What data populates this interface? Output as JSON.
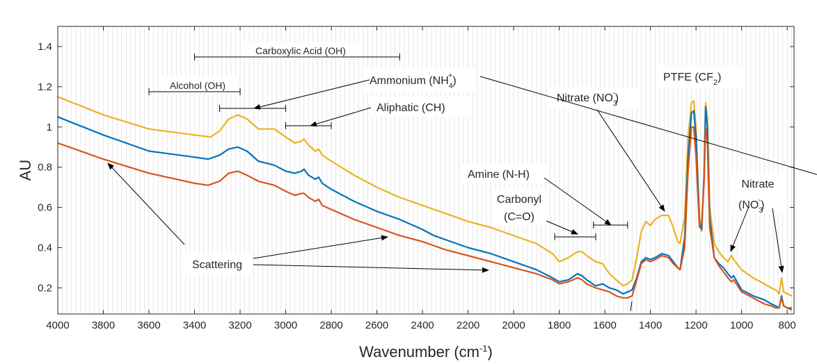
{
  "chart_data": {
    "type": "line",
    "title": "",
    "xlabel": {
      "text": "Wavenumber (cm",
      "sup": "-1",
      "close": ")"
    },
    "ylabel": "AU",
    "xlim": [
      4000,
      770
    ],
    "ylim": [
      0.07,
      1.5
    ],
    "x_reversed": true,
    "grid": "vertical-minor",
    "x_ticks": [
      4000,
      3800,
      3600,
      3400,
      3200,
      3000,
      2800,
      2600,
      2400,
      2200,
      2000,
      1800,
      1600,
      1400,
      1200,
      1000,
      800
    ],
    "y_ticks": [
      0.2,
      0.4,
      0.6,
      0.8,
      1,
      1.2,
      1.4
    ],
    "series": [
      {
        "name": "yellow spectrum",
        "color": "#EDB120",
        "points": [
          [
            4000,
            1.15
          ],
          [
            3800,
            1.06
          ],
          [
            3600,
            0.99
          ],
          [
            3400,
            0.96
          ],
          [
            3330,
            0.95
          ],
          [
            3290,
            0.98
          ],
          [
            3250,
            1.04
          ],
          [
            3210,
            1.06
          ],
          [
            3170,
            1.04
          ],
          [
            3120,
            0.99
          ],
          [
            3050,
            0.99
          ],
          [
            3000,
            0.95
          ],
          [
            2960,
            0.92
          ],
          [
            2930,
            0.93
          ],
          [
            2920,
            0.94
          ],
          [
            2900,
            0.91
          ],
          [
            2870,
            0.88
          ],
          [
            2855,
            0.89
          ],
          [
            2840,
            0.86
          ],
          [
            2800,
            0.83
          ],
          [
            2700,
            0.76
          ],
          [
            2600,
            0.7
          ],
          [
            2500,
            0.65
          ],
          [
            2400,
            0.61
          ],
          [
            2350,
            0.59
          ],
          [
            2300,
            0.57
          ],
          [
            2200,
            0.53
          ],
          [
            2100,
            0.5
          ],
          [
            2000,
            0.46
          ],
          [
            1900,
            0.42
          ],
          [
            1830,
            0.37
          ],
          [
            1800,
            0.33
          ],
          [
            1760,
            0.35
          ],
          [
            1720,
            0.38
          ],
          [
            1700,
            0.38
          ],
          [
            1680,
            0.36
          ],
          [
            1640,
            0.33
          ],
          [
            1610,
            0.32
          ],
          [
            1580,
            0.27
          ],
          [
            1550,
            0.24
          ],
          [
            1520,
            0.21
          ],
          [
            1500,
            0.22
          ],
          [
            1480,
            0.24
          ],
          [
            1460,
            0.35
          ],
          [
            1440,
            0.48
          ],
          [
            1420,
            0.53
          ],
          [
            1400,
            0.51
          ],
          [
            1380,
            0.54
          ],
          [
            1350,
            0.56
          ],
          [
            1320,
            0.56
          ],
          [
            1300,
            0.5
          ],
          [
            1280,
            0.43
          ],
          [
            1270,
            0.42
          ],
          [
            1250,
            0.55
          ],
          [
            1235,
            0.95
          ],
          [
            1220,
            1.12
          ],
          [
            1210,
            1.13
          ],
          [
            1200,
            1.0
          ],
          [
            1185,
            0.55
          ],
          [
            1175,
            0.48
          ],
          [
            1165,
            0.75
          ],
          [
            1158,
            1.12
          ],
          [
            1150,
            1.05
          ],
          [
            1140,
            0.6
          ],
          [
            1120,
            0.42
          ],
          [
            1100,
            0.38
          ],
          [
            1080,
            0.35
          ],
          [
            1060,
            0.33
          ],
          [
            1045,
            0.36
          ],
          [
            1035,
            0.34
          ],
          [
            1000,
            0.29
          ],
          [
            950,
            0.25
          ],
          [
            900,
            0.22
          ],
          [
            870,
            0.2
          ],
          [
            850,
            0.19
          ],
          [
            835,
            0.17
          ],
          [
            825,
            0.25
          ],
          [
            815,
            0.18
          ],
          [
            800,
            0.17
          ],
          [
            780,
            0.16
          ]
        ]
      },
      {
        "name": "blue spectrum",
        "color": "#0072BD",
        "points": [
          [
            4000,
            1.05
          ],
          [
            3800,
            0.96
          ],
          [
            3600,
            0.88
          ],
          [
            3400,
            0.85
          ],
          [
            3340,
            0.84
          ],
          [
            3290,
            0.86
          ],
          [
            3250,
            0.89
          ],
          [
            3210,
            0.9
          ],
          [
            3170,
            0.88
          ],
          [
            3120,
            0.83
          ],
          [
            3050,
            0.81
          ],
          [
            3000,
            0.78
          ],
          [
            2960,
            0.77
          ],
          [
            2930,
            0.78
          ],
          [
            2920,
            0.79
          ],
          [
            2900,
            0.76
          ],
          [
            2870,
            0.74
          ],
          [
            2855,
            0.75
          ],
          [
            2840,
            0.72
          ],
          [
            2800,
            0.69
          ],
          [
            2700,
            0.63
          ],
          [
            2600,
            0.58
          ],
          [
            2500,
            0.54
          ],
          [
            2400,
            0.49
          ],
          [
            2350,
            0.46
          ],
          [
            2300,
            0.44
          ],
          [
            2200,
            0.4
          ],
          [
            2100,
            0.37
          ],
          [
            2000,
            0.33
          ],
          [
            1900,
            0.29
          ],
          [
            1830,
            0.25
          ],
          [
            1800,
            0.23
          ],
          [
            1760,
            0.24
          ],
          [
            1720,
            0.27
          ],
          [
            1700,
            0.26
          ],
          [
            1680,
            0.24
          ],
          [
            1640,
            0.21
          ],
          [
            1610,
            0.22
          ],
          [
            1580,
            0.2
          ],
          [
            1550,
            0.19
          ],
          [
            1520,
            0.17
          ],
          [
            1500,
            0.18
          ],
          [
            1480,
            0.19
          ],
          [
            1460,
            0.25
          ],
          [
            1440,
            0.33
          ],
          [
            1420,
            0.35
          ],
          [
            1400,
            0.34
          ],
          [
            1380,
            0.35
          ],
          [
            1350,
            0.37
          ],
          [
            1320,
            0.36
          ],
          [
            1300,
            0.33
          ],
          [
            1280,
            0.3
          ],
          [
            1270,
            0.29
          ],
          [
            1250,
            0.45
          ],
          [
            1235,
            0.85
          ],
          [
            1220,
            1.07
          ],
          [
            1210,
            1.08
          ],
          [
            1200,
            0.95
          ],
          [
            1185,
            0.52
          ],
          [
            1175,
            0.49
          ],
          [
            1165,
            0.75
          ],
          [
            1158,
            1.1
          ],
          [
            1150,
            1.0
          ],
          [
            1140,
            0.55
          ],
          [
            1120,
            0.35
          ],
          [
            1100,
            0.32
          ],
          [
            1080,
            0.3
          ],
          [
            1060,
            0.27
          ],
          [
            1045,
            0.25
          ],
          [
            1035,
            0.26
          ],
          [
            1000,
            0.19
          ],
          [
            950,
            0.16
          ],
          [
            900,
            0.14
          ],
          [
            870,
            0.12
          ],
          [
            850,
            0.11
          ],
          [
            835,
            0.1
          ],
          [
            825,
            0.16
          ],
          [
            815,
            0.11
          ],
          [
            800,
            0.1
          ],
          [
            780,
            0.1
          ]
        ]
      },
      {
        "name": "red spectrum",
        "color": "#D95319",
        "points": [
          [
            4000,
            0.92
          ],
          [
            3800,
            0.84
          ],
          [
            3600,
            0.77
          ],
          [
            3400,
            0.72
          ],
          [
            3340,
            0.71
          ],
          [
            3290,
            0.73
          ],
          [
            3250,
            0.77
          ],
          [
            3210,
            0.78
          ],
          [
            3170,
            0.76
          ],
          [
            3120,
            0.73
          ],
          [
            3050,
            0.71
          ],
          [
            3000,
            0.68
          ],
          [
            2960,
            0.66
          ],
          [
            2930,
            0.67
          ],
          [
            2920,
            0.67
          ],
          [
            2900,
            0.65
          ],
          [
            2870,
            0.63
          ],
          [
            2855,
            0.64
          ],
          [
            2840,
            0.61
          ],
          [
            2800,
            0.59
          ],
          [
            2700,
            0.54
          ],
          [
            2600,
            0.5
          ],
          [
            2500,
            0.46
          ],
          [
            2400,
            0.43
          ],
          [
            2350,
            0.41
          ],
          [
            2300,
            0.39
          ],
          [
            2200,
            0.36
          ],
          [
            2100,
            0.33
          ],
          [
            2000,
            0.3
          ],
          [
            1900,
            0.27
          ],
          [
            1830,
            0.24
          ],
          [
            1800,
            0.22
          ],
          [
            1760,
            0.23
          ],
          [
            1720,
            0.25
          ],
          [
            1700,
            0.24
          ],
          [
            1680,
            0.22
          ],
          [
            1640,
            0.2
          ],
          [
            1610,
            0.19
          ],
          [
            1580,
            0.18
          ],
          [
            1550,
            0.16
          ],
          [
            1520,
            0.15
          ],
          [
            1500,
            0.15
          ],
          [
            1480,
            0.16
          ],
          [
            1460,
            0.24
          ],
          [
            1440,
            0.32
          ],
          [
            1420,
            0.34
          ],
          [
            1400,
            0.33
          ],
          [
            1380,
            0.34
          ],
          [
            1350,
            0.36
          ],
          [
            1320,
            0.35
          ],
          [
            1300,
            0.32
          ],
          [
            1280,
            0.3
          ],
          [
            1270,
            0.29
          ],
          [
            1250,
            0.4
          ],
          [
            1235,
            0.78
          ],
          [
            1220,
            1.0
          ],
          [
            1210,
            1.0
          ],
          [
            1200,
            0.85
          ],
          [
            1185,
            0.5
          ],
          [
            1175,
            0.52
          ],
          [
            1165,
            0.72
          ],
          [
            1158,
            1.0
          ],
          [
            1150,
            0.92
          ],
          [
            1140,
            0.5
          ],
          [
            1120,
            0.35
          ],
          [
            1100,
            0.31
          ],
          [
            1080,
            0.28
          ],
          [
            1060,
            0.25
          ],
          [
            1045,
            0.23
          ],
          [
            1035,
            0.24
          ],
          [
            1000,
            0.18
          ],
          [
            950,
            0.15
          ],
          [
            900,
            0.12
          ],
          [
            870,
            0.11
          ],
          [
            850,
            0.1
          ],
          [
            835,
            0.1
          ],
          [
            825,
            0.15
          ],
          [
            815,
            0.11
          ],
          [
            800,
            0.1
          ],
          [
            780,
            0.09
          ]
        ]
      }
    ],
    "annotations": {
      "carboxylic": {
        "text": "Carboxylic Acid (OH)",
        "range": [
          3400,
          2500
        ]
      },
      "alcohol": {
        "text": "Alcohol (OH)",
        "range": [
          3600,
          3200
        ]
      },
      "ammonium": {
        "text": "Ammonium (NH",
        "sub": "4",
        "sup": "+",
        "close": ")",
        "range": [
          3290,
          3000
        ]
      },
      "aliphatic": {
        "text": "Aliphatic (CH)",
        "range": [
          3000,
          2800
        ]
      },
      "nitrate1": {
        "text": "Nitrate (NO",
        "sub": "3",
        "sup": "-",
        "close": ")"
      },
      "ptfe": {
        "text": "PTFE (CF",
        "sub": "2",
        "close": ")"
      },
      "amine": {
        "text": "Amine (N-H)",
        "range": [
          1650,
          1500
        ]
      },
      "carbonyl": {
        "line1": "Carbonyl",
        "line2": "(C=O)",
        "range": [
          1820,
          1640
        ]
      },
      "nitrate2": {
        "line1": "Nitrate",
        "text": "(NO",
        "sub": "3",
        "sup": "-",
        "close": ")"
      },
      "scattering": {
        "text": "Scattering"
      }
    }
  }
}
